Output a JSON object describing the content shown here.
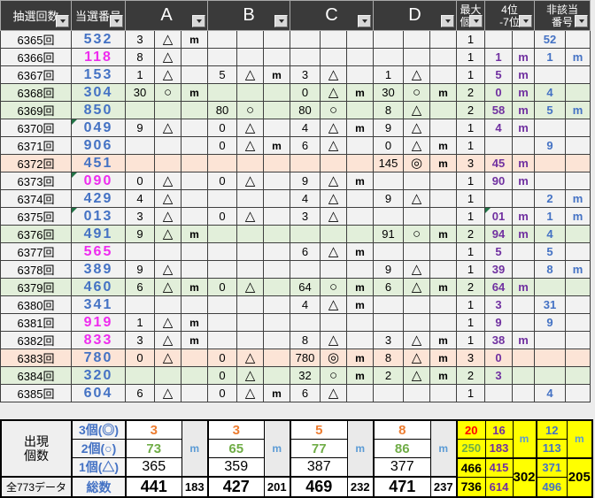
{
  "header": {
    "draw_label": "抽選回数",
    "winning_label": "当選番号",
    "groups": [
      "A",
      "B",
      "C",
      "D"
    ],
    "max_label": "最大\n個数",
    "rank_label": "4位\n-7位",
    "non_label": "非該当\n番号"
  },
  "symbols": {
    "triangle": "△",
    "circle": "○",
    "double_circle": "◎"
  },
  "colors": {
    "blue": "#4472c4",
    "magenta": "#ee2cee",
    "purple": "#7030a0",
    "light_blue": "#5b9bd5",
    "orange": "#ed7d31",
    "green": "#70ad47",
    "red": "#ff0000",
    "yellow": "#ffff00",
    "row_default": "#f2f2f2",
    "row_green": "#e2efda",
    "row_peach": "#fce4d6"
  },
  "rows": [
    {
      "draw": "6365回",
      "win": "532",
      "color": "#4472c4",
      "bg": "#f2f2f2",
      "A": [
        "3",
        "△",
        "m"
      ],
      "max": "1",
      "non": [
        "52",
        ""
      ]
    },
    {
      "draw": "6366回",
      "win": "118",
      "color": "#ee2cee",
      "bg": "#f2f2f2",
      "A": [
        "8",
        "△",
        ""
      ],
      "max": "1",
      "rank": [
        "1",
        "m"
      ],
      "non": [
        "1",
        "m"
      ]
    },
    {
      "draw": "6367回",
      "win": "153",
      "color": "#4472c4",
      "bg": "#f2f2f2",
      "A": [
        "1",
        "△",
        ""
      ],
      "B": [
        "5",
        "△",
        "m"
      ],
      "C": [
        "3",
        "△",
        ""
      ],
      "D": [
        "1",
        "△",
        ""
      ],
      "max": "1",
      "rank": [
        "5",
        "m"
      ]
    },
    {
      "draw": "6368回",
      "win": "304",
      "color": "#4472c4",
      "bg": "#e2efda",
      "A": [
        "30",
        "○",
        "m"
      ],
      "C": [
        "0",
        "△",
        "m"
      ],
      "D": [
        "30",
        "○",
        "m"
      ],
      "max": "2",
      "rank": [
        "0",
        "m"
      ],
      "non": [
        "4",
        ""
      ]
    },
    {
      "draw": "6369回",
      "win": "850",
      "color": "#4472c4",
      "bg": "#e2efda",
      "B": [
        "80",
        "○",
        ""
      ],
      "C": [
        "80",
        "○",
        ""
      ],
      "D": [
        "8",
        "△",
        ""
      ],
      "max": "2",
      "rank": [
        "58",
        "m"
      ],
      "non": [
        "5",
        "m"
      ]
    },
    {
      "draw": "6370回",
      "win": "049",
      "color": "#4472c4",
      "bg": "#f2f2f2",
      "note_win": true,
      "A": [
        "9",
        "△",
        ""
      ],
      "B": [
        "0",
        "△",
        ""
      ],
      "C": [
        "4",
        "△",
        "m"
      ],
      "D": [
        "9",
        "△",
        ""
      ],
      "max": "1",
      "rank": [
        "4",
        "m"
      ]
    },
    {
      "draw": "6371回",
      "win": "906",
      "color": "#4472c4",
      "bg": "#f2f2f2",
      "B": [
        "0",
        "△",
        "m"
      ],
      "C": [
        "6",
        "△",
        ""
      ],
      "D": [
        "0",
        "△",
        "m"
      ],
      "max": "1",
      "non": [
        "9",
        ""
      ]
    },
    {
      "draw": "6372回",
      "win": "451",
      "color": "#4472c4",
      "bg": "#fce4d6",
      "D": [
        "145",
        "◎",
        "m"
      ],
      "max": "3",
      "rank": [
        "45",
        "m"
      ]
    },
    {
      "draw": "6373回",
      "win": "090",
      "color": "#ee2cee",
      "bg": "#f2f2f2",
      "note_win": true,
      "A": [
        "0",
        "△",
        ""
      ],
      "B": [
        "0",
        "△",
        ""
      ],
      "C": [
        "9",
        "△",
        "m"
      ],
      "max": "1",
      "rank": [
        "90",
        "m"
      ]
    },
    {
      "draw": "6374回",
      "win": "429",
      "color": "#4472c4",
      "bg": "#f2f2f2",
      "A": [
        "4",
        "△",
        ""
      ],
      "C": [
        "4",
        "△",
        ""
      ],
      "D": [
        "9",
        "△",
        ""
      ],
      "max": "1",
      "non": [
        "2",
        "m"
      ]
    },
    {
      "draw": "6375回",
      "win": "013",
      "color": "#4472c4",
      "bg": "#f2f2f2",
      "note_win": true,
      "A": [
        "3",
        "△",
        ""
      ],
      "B": [
        "0",
        "△",
        ""
      ],
      "C": [
        "3",
        "△",
        ""
      ],
      "max": "1",
      "rank": [
        "01",
        "m"
      ],
      "note_rank": true,
      "non": [
        "1",
        "m"
      ]
    },
    {
      "draw": "6376回",
      "win": "491",
      "color": "#4472c4",
      "bg": "#e2efda",
      "A": [
        "9",
        "△",
        "m"
      ],
      "D": [
        "91",
        "○",
        "m"
      ],
      "max": "2",
      "rank": [
        "94",
        "m"
      ],
      "non": [
        "4",
        ""
      ]
    },
    {
      "draw": "6377回",
      "win": "565",
      "color": "#ee2cee",
      "bg": "#f2f2f2",
      "C": [
        "6",
        "△",
        "m"
      ],
      "max": "1",
      "rank": [
        "5",
        ""
      ],
      "non": [
        "5",
        ""
      ]
    },
    {
      "draw": "6378回",
      "win": "389",
      "color": "#4472c4",
      "bg": "#f2f2f2",
      "A": [
        "9",
        "△",
        ""
      ],
      "D": [
        "9",
        "△",
        ""
      ],
      "max": "1",
      "rank": [
        "39",
        ""
      ],
      "non": [
        "8",
        "m"
      ]
    },
    {
      "draw": "6379回",
      "win": "460",
      "color": "#4472c4",
      "bg": "#e2efda",
      "A": [
        "6",
        "△",
        "m"
      ],
      "B": [
        "0",
        "△",
        ""
      ],
      "C": [
        "64",
        "○",
        "m"
      ],
      "D": [
        "6",
        "△",
        "m"
      ],
      "max": "2",
      "rank": [
        "64",
        "m"
      ]
    },
    {
      "draw": "6380回",
      "win": "341",
      "color": "#4472c4",
      "bg": "#f2f2f2",
      "C": [
        "4",
        "△",
        "m"
      ],
      "max": "1",
      "rank": [
        "3",
        ""
      ],
      "non": [
        "31",
        ""
      ]
    },
    {
      "draw": "6381回",
      "win": "919",
      "color": "#ee2cee",
      "bg": "#f2f2f2",
      "A": [
        "1",
        "△",
        "m"
      ],
      "max": "1",
      "rank": [
        "9",
        ""
      ],
      "non": [
        "9",
        ""
      ]
    },
    {
      "draw": "6382回",
      "win": "833",
      "color": "#ee2cee",
      "bg": "#f2f2f2",
      "A": [
        "3",
        "△",
        "m"
      ],
      "C": [
        "8",
        "△",
        ""
      ],
      "D": [
        "3",
        "△",
        "m"
      ],
      "max": "1",
      "rank": [
        "38",
        "m"
      ]
    },
    {
      "draw": "6383回",
      "win": "780",
      "color": "#4472c4",
      "bg": "#fce4d6",
      "A": [
        "0",
        "△",
        ""
      ],
      "B": [
        "0",
        "△",
        ""
      ],
      "C": [
        "780",
        "◎",
        "m"
      ],
      "D": [
        "8",
        "△",
        "m"
      ],
      "max": "3",
      "rank": [
        "0",
        ""
      ]
    },
    {
      "draw": "6384回",
      "win": "320",
      "color": "#4472c4",
      "bg": "#e2efda",
      "B": [
        "0",
        "△",
        ""
      ],
      "C": [
        "32",
        "○",
        "m"
      ],
      "D": [
        "2",
        "△",
        "m"
      ],
      "max": "2",
      "rank": [
        "3",
        ""
      ]
    },
    {
      "draw": "6385回",
      "win": "604",
      "color": "#4472c4",
      "bg": "#f2f2f2",
      "A": [
        "6",
        "△",
        ""
      ],
      "B": [
        "0",
        "△",
        "m"
      ],
      "C": [
        "6",
        "△",
        ""
      ],
      "max": "1",
      "non": [
        "4",
        ""
      ]
    }
  ],
  "footer": {
    "side_label": "出現\n個数",
    "total_label": "全773データ",
    "row_labels": [
      "3個(◎)",
      "2個(○)",
      "1個(△)",
      "総数"
    ],
    "A": {
      "c3": "3",
      "c2": "73",
      "m": "m",
      "c1": "365",
      "total": "441",
      "sub": "183"
    },
    "B": {
      "c3": "3",
      "c2": "65",
      "m": "m",
      "c1": "359",
      "total": "427",
      "sub": "201"
    },
    "C": {
      "c3": "5",
      "c2": "77",
      "m": "m",
      "c1": "387",
      "total": "469",
      "sub": "232"
    },
    "D": {
      "c3": "8",
      "c2": "86",
      "m": "m",
      "c1": "377",
      "total": "471",
      "sub": "237"
    },
    "max_col": [
      "20",
      "250",
      "466",
      "736"
    ],
    "rank_col": [
      "16",
      "183",
      "415",
      "614"
    ],
    "rank_m": "m",
    "rank_sub": "302",
    "non_col": [
      "12",
      "113",
      "371",
      "496"
    ],
    "non_m": "m",
    "non_sub": "205"
  }
}
